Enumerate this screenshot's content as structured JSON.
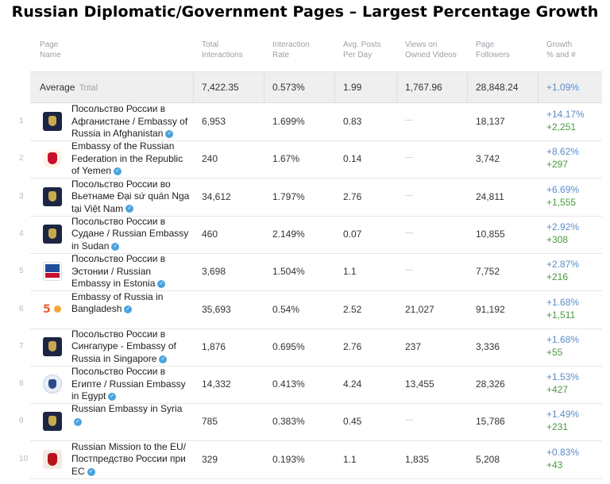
{
  "title": "Russian Diplomatic/Government Pages – Largest Percentage Growth",
  "columns": [
    [
      "Page",
      "Name"
    ],
    [
      "Total",
      "Interactions"
    ],
    [
      "Interaction",
      "Rate"
    ],
    [
      "Avg. Posts",
      "Per Day"
    ],
    [
      "Views on",
      "Owned Videos"
    ],
    [
      "Page",
      "Followers"
    ],
    [
      "Growth",
      "% and #"
    ]
  ],
  "average": {
    "label": "Average",
    "sublabel": "Total",
    "interactions": "7,422.35",
    "rate": "0.573%",
    "posts": "1.99",
    "views": "1,767.96",
    "followers": "28,848.24",
    "growth": "+1.09%"
  },
  "rows": [
    {
      "idx": "1",
      "logo": "navy-crest-icon",
      "name": "Посольство России в Афганистане / Embassy of Russia in Afghanistan",
      "interactions": "6,953",
      "rate": "1.699%",
      "posts": "0.83",
      "views": "—",
      "followers": "18,137",
      "growth_pct": "+14.17%",
      "growth_num": "+2,251"
    },
    {
      "idx": "2",
      "logo": "russian-crest-icon",
      "name": "Embassy of the Russian Federation in the Republic of Yemen",
      "interactions": "240",
      "rate": "1.67%",
      "posts": "0.14",
      "views": "—",
      "followers": "3,742",
      "growth_pct": "+8.62%",
      "growth_num": "+297"
    },
    {
      "idx": "3",
      "logo": "navy-crest-icon",
      "name": "Посольство России во Вьетнаме Đại sứ quán Nga tại Việt Nam",
      "interactions": "34,612",
      "rate": "1.797%",
      "posts": "2.76",
      "views": "—",
      "followers": "24,811",
      "growth_pct": "+6.69%",
      "growth_num": "+1,555"
    },
    {
      "idx": "4",
      "logo": "navy-crest-icon",
      "name": "Посольство России в Судане / Russian Embassy in Sudan",
      "interactions": "460",
      "rate": "2.149%",
      "posts": "0.07",
      "views": "—",
      "followers": "10,855",
      "growth_pct": "+2.92%",
      "growth_num": "+308"
    },
    {
      "idx": "5",
      "logo": "estonia-flag-icon",
      "name": "Посольство России в Эстонии / Russian Embassy in Estonia",
      "interactions": "3,698",
      "rate": "1.504%",
      "posts": "1.1",
      "views": "—",
      "followers": "7,752",
      "growth_pct": "+2.87%",
      "growth_num": "+216"
    },
    {
      "idx": "6",
      "logo": "fifty-anniversary-icon",
      "name": "Embassy of Russia in Bangladesh",
      "interactions": "35,693",
      "rate": "0.54%",
      "posts": "2.52",
      "views": "21,027",
      "followers": "91,192",
      "growth_pct": "+1.68%",
      "growth_num": "+1,511"
    },
    {
      "idx": "7",
      "logo": "navy-crest-icon",
      "name": "Посольство России в Сингапуре - Embassy of Russia in Singapore",
      "interactions": "1,876",
      "rate": "0.695%",
      "posts": "2.76",
      "views": "237",
      "followers": "3,336",
      "growth_pct": "+1.68%",
      "growth_num": "+55"
    },
    {
      "idx": "8",
      "logo": "round-seal-icon",
      "name": "Посольство России в Египте / Russian Embassy in Egypt",
      "interactions": "14,332",
      "rate": "0.413%",
      "posts": "4.24",
      "views": "13,455",
      "followers": "28,326",
      "growth_pct": "+1.53%",
      "growth_num": "+427"
    },
    {
      "idx": "9",
      "logo": "navy-crest-icon",
      "name": "Russian Embassy in Syria",
      "interactions": "785",
      "rate": "0.383%",
      "posts": "0.45",
      "views": "—",
      "followers": "15,786",
      "growth_pct": "+1.49%",
      "growth_num": "+231"
    },
    {
      "idx": "10",
      "logo": "red-crest-icon",
      "name": "Russian Mission to the EU/ Постпредство России при ЕС",
      "interactions": "329",
      "rate": "0.193%",
      "posts": "1.1",
      "views": "1,835",
      "followers": "5,208",
      "growth_pct": "+0.83%",
      "growth_num": "+43"
    }
  ]
}
